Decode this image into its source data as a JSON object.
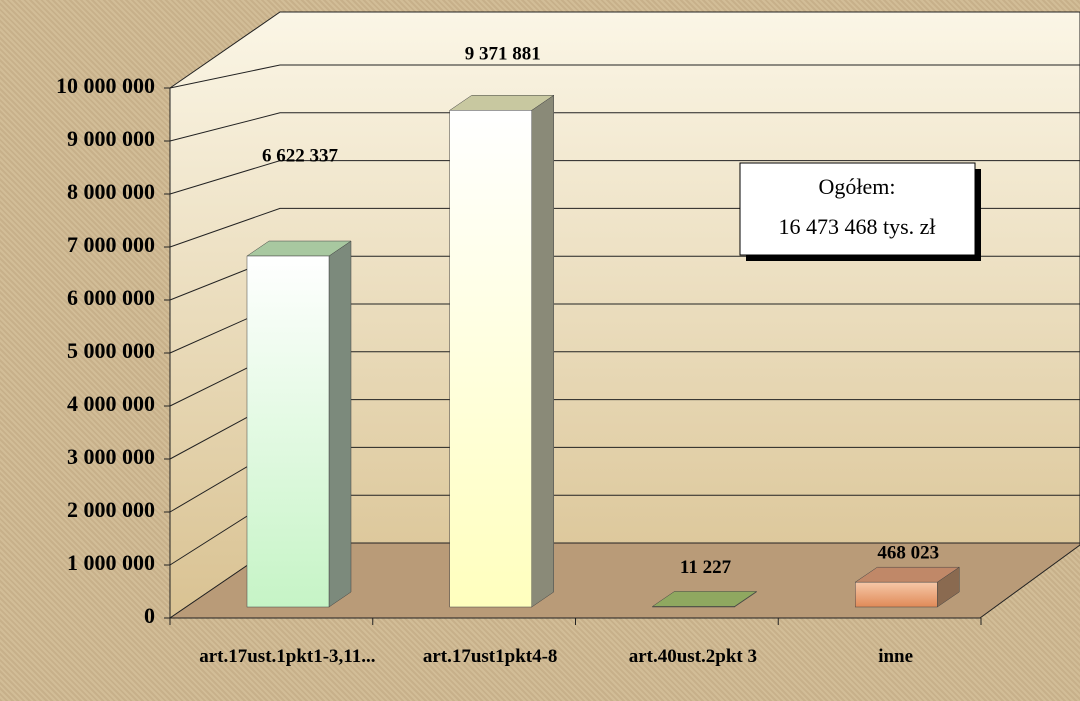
{
  "chart_data": {
    "type": "bar3d",
    "categories": [
      "art.17ust.1pkt1-3,11...",
      "art.17ust1pkt4-8",
      "art.40ust.2pkt 3",
      "inne"
    ],
    "values": [
      6622337,
      9371881,
      11227,
      468023
    ],
    "value_labels": [
      "6 622 337",
      "9 371 881",
      "11 227",
      "468 023"
    ],
    "colors": [
      "#ccf7cc",
      "#ffffc4",
      "#9fc060",
      "#e8a070"
    ],
    "ylim": [
      0,
      10000000
    ],
    "yticks": [
      {
        "value": 0,
        "label": "0"
      },
      {
        "value": 1000000,
        "label": "1 000 000"
      },
      {
        "value": 2000000,
        "label": "2 000 000"
      },
      {
        "value": 3000000,
        "label": "3 000 000"
      },
      {
        "value": 4000000,
        "label": "4 000 000"
      },
      {
        "value": 5000000,
        "label": "5 000 000"
      },
      {
        "value": 6000000,
        "label": "6 000 000"
      },
      {
        "value": 7000000,
        "label": "7 000 000"
      },
      {
        "value": 8000000,
        "label": "8 000 000"
      },
      {
        "value": 9000000,
        "label": "9 000 000"
      },
      {
        "value": 10000000,
        "label": "10 000 000"
      }
    ],
    "grid": true,
    "annotation": [
      "Ogółem:",
      "16 473 468 tys. zł"
    ]
  }
}
